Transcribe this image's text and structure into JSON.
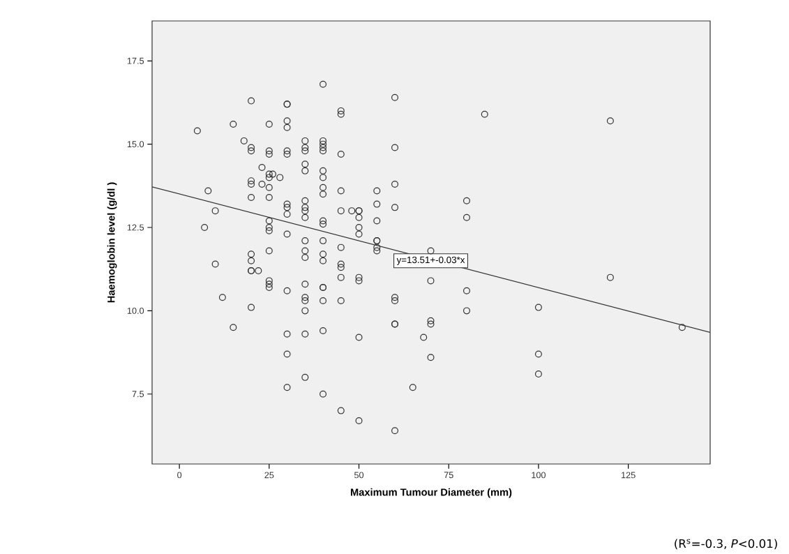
{
  "chart_data": {
    "type": "scatter",
    "xlabel": "Maximum Tumour Diameter (mm)",
    "ylabel": "Haemoglobin level (g/dl )",
    "xlim": [
      -7.6,
      147.8
    ],
    "ylim": [
      5.4,
      18.7
    ],
    "xticks": [
      0,
      25,
      50,
      75,
      100,
      125
    ],
    "yticks": [
      {
        "value": 7.5,
        "label": "7.5"
      },
      {
        "value": 10,
        "label": "10.0"
      },
      {
        "value": 12.5,
        "label": "12.5"
      },
      {
        "value": 15,
        "label": "15.0"
      },
      {
        "value": 17.5,
        "label": "17.5"
      }
    ],
    "grid": false,
    "series": [
      {
        "marker": "circle",
        "color": "#333333",
        "x": [
          5,
          7,
          8,
          10,
          10,
          12,
          15,
          15,
          18,
          20,
          20,
          20,
          20,
          20,
          20,
          20,
          20,
          20,
          20,
          20,
          22,
          23,
          23,
          25,
          25,
          25,
          25,
          25,
          25,
          25,
          25,
          25,
          25,
          25,
          25,
          25,
          25,
          26,
          28,
          30,
          30,
          30,
          30,
          30,
          30,
          30,
          30,
          30,
          30,
          30,
          30,
          30,
          30,
          35,
          35,
          35,
          35,
          35,
          35,
          35,
          35,
          35,
          35,
          35,
          35,
          35,
          35,
          35,
          35,
          35,
          35,
          40,
          40,
          40,
          40,
          40,
          40,
          40,
          40,
          40,
          40,
          40,
          40,
          40,
          40,
          40,
          40,
          40,
          40,
          40,
          45,
          45,
          45,
          45,
          45,
          45,
          45,
          45,
          45,
          45,
          45,
          48,
          50,
          50,
          50,
          50,
          50,
          50,
          50,
          50,
          50,
          55,
          55,
          55,
          55,
          55,
          55,
          55,
          60,
          60,
          60,
          60,
          60,
          60,
          60,
          60,
          60,
          65,
          68,
          70,
          70,
          70,
          70,
          70,
          80,
          80,
          80,
          80,
          85,
          100,
          100,
          100,
          120,
          120,
          140
        ],
        "values": [
          15.4,
          12.5,
          13.6,
          13.0,
          11.4,
          10.4,
          15.6,
          9.5,
          15.1,
          16.3,
          14.9,
          14.8,
          13.9,
          13.8,
          13.4,
          11.7,
          11.5,
          11.2,
          11.2,
          10.1,
          11.2,
          14.3,
          13.8,
          15.6,
          14.8,
          14.7,
          14.1,
          14.0,
          13.7,
          13.4,
          12.7,
          12.5,
          12.4,
          11.8,
          10.9,
          10.8,
          10.7,
          14.1,
          14.0,
          16.2,
          16.2,
          15.7,
          15.5,
          14.8,
          14.7,
          13.2,
          13.1,
          12.9,
          12.3,
          10.6,
          9.3,
          8.7,
          7.7,
          15.1,
          14.9,
          14.8,
          14.4,
          14.2,
          13.3,
          13.1,
          13.0,
          12.8,
          12.1,
          11.8,
          11.6,
          10.8,
          10.4,
          10.3,
          10.0,
          9.3,
          8.0,
          16.8,
          15.1,
          15.0,
          14.9,
          14.8,
          14.2,
          14.0,
          13.7,
          13.5,
          12.7,
          12.6,
          12.1,
          11.7,
          11.5,
          10.7,
          10.7,
          10.3,
          9.4,
          7.5,
          16.0,
          15.9,
          14.7,
          13.6,
          13.0,
          11.9,
          11.4,
          11.3,
          11.0,
          10.3,
          7.0,
          13.0,
          13.0,
          13.0,
          12.8,
          12.5,
          12.3,
          11.0,
          10.9,
          9.2,
          6.7,
          13.6,
          13.2,
          12.7,
          12.1,
          12.1,
          11.9,
          11.8,
          16.4,
          14.9,
          13.8,
          13.1,
          10.4,
          10.3,
          9.6,
          9.6,
          6.4,
          7.7,
          9.2,
          11.8,
          10.9,
          9.7,
          9.6,
          8.6,
          13.3,
          12.8,
          10.6,
          10.0,
          15.9,
          10.1,
          8.7,
          8.1,
          15.7,
          11.0,
          9.5
        ]
      },
      {
        "type": "line",
        "marker": "none",
        "color": "#333333",
        "x": [
          -7.6,
          147.8
        ],
        "values": [
          13.72,
          9.35
        ]
      }
    ],
    "annotations": [
      {
        "text": "y=13.51+-0.03*x",
        "x": 70,
        "y": 11.5
      },
      "(R$^{s}$=-0.3, *P*<0.01)"
    ]
  }
}
